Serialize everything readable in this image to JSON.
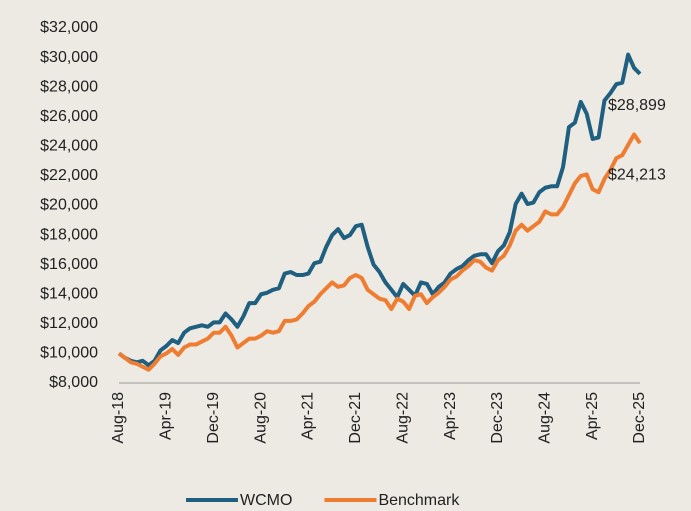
{
  "chart_data": {
    "type": "line",
    "categories": [
      "Aug-18",
      null,
      null,
      null,
      null,
      null,
      null,
      null,
      "Apr-19",
      null,
      null,
      null,
      null,
      null,
      null,
      null,
      "Dec-19",
      null,
      null,
      null,
      null,
      null,
      null,
      null,
      "Aug-20",
      null,
      null,
      null,
      null,
      null,
      null,
      null,
      "Apr-21",
      null,
      null,
      null,
      null,
      null,
      null,
      null,
      "Dec-21",
      null,
      null,
      null,
      null,
      null,
      null,
      null,
      "Aug-22",
      null,
      null,
      null,
      null,
      null,
      null,
      null,
      "Apr-23",
      null,
      null,
      null,
      null,
      null,
      null,
      null,
      "Dec-23",
      null,
      null,
      null,
      null,
      null,
      null,
      null,
      "Aug-24",
      null,
      null,
      null,
      null,
      null,
      null,
      null,
      "Apr-25",
      null,
      null,
      null,
      null,
      null,
      null,
      null,
      "Dec-25"
    ],
    "series": [
      {
        "name": "WCMO",
        "color": "#1f5f80",
        "values": [
          10000,
          9700,
          9500,
          9400,
          9500,
          9200,
          9500,
          10200,
          10500,
          10900,
          10700,
          11400,
          11700,
          11800,
          11900,
          11800,
          12100,
          12100,
          12700,
          12300,
          11800,
          12500,
          13400,
          13400,
          14000,
          14100,
          14300,
          14400,
          15400,
          15500,
          15300,
          15300,
          15400,
          16100,
          16200,
          17200,
          18000,
          18400,
          17800,
          18000,
          18600,
          18700,
          17200,
          16000,
          15500,
          14800,
          14300,
          13800,
          14700,
          14300,
          13900,
          14800,
          14700,
          14000,
          14500,
          14800,
          15400,
          15700,
          15900,
          16300,
          16600,
          16700,
          16700,
          16100,
          16900,
          17300,
          18200,
          20100,
          20800,
          20100,
          20200,
          20900,
          21200,
          21300,
          21300,
          22600,
          25300,
          25600,
          27000,
          26200,
          24500,
          24600,
          27100,
          27600,
          28200,
          28300,
          30200,
          29300,
          28899
        ],
        "value_labels": [
          null,
          null,
          null,
          null,
          null,
          null,
          null,
          null,
          null,
          null,
          null,
          null,
          null,
          null,
          null,
          null,
          null,
          null,
          null,
          null,
          null,
          null,
          null,
          null,
          null,
          null,
          null,
          null,
          null,
          null,
          null,
          null,
          null,
          null,
          null,
          null,
          null,
          null,
          null,
          null,
          null,
          null,
          null,
          null,
          null,
          null,
          null,
          null,
          null,
          null,
          null,
          null,
          null,
          null,
          null,
          null,
          null,
          null,
          null,
          null,
          null,
          null,
          null,
          null,
          null,
          null,
          null,
          null,
          null,
          null,
          null,
          null,
          null,
          null,
          null,
          null,
          null,
          null,
          null,
          null,
          null,
          null,
          null,
          null,
          null,
          null,
          null,
          null,
          "$28,899"
        ]
      },
      {
        "name": "Benchmark",
        "color": "#ee7d31",
        "values": [
          10000,
          9700,
          9400,
          9300,
          9100,
          8900,
          9300,
          9800,
          10000,
          10300,
          9900,
          10400,
          10600,
          10600,
          10800,
          11000,
          11400,
          11400,
          11800,
          11200,
          10400,
          10700,
          11000,
          11000,
          11200,
          11500,
          11400,
          11500,
          12200,
          12200,
          12300,
          12700,
          13200,
          13500,
          14000,
          14400,
          14800,
          14500,
          14600,
          15100,
          15300,
          15100,
          14300,
          14000,
          13700,
          13600,
          13000,
          13700,
          13500,
          13000,
          13900,
          14000,
          13400,
          13800,
          14100,
          14500,
          15000,
          15200,
          15600,
          15900,
          16300,
          16200,
          15800,
          15600,
          16300,
          16600,
          17300,
          18300,
          18700,
          18300,
          18600,
          18900,
          19600,
          19400,
          19400,
          19900,
          20700,
          21500,
          22000,
          22100,
          21100,
          20900,
          21800,
          22400,
          23200,
          23400,
          24100,
          24800,
          24213
        ],
        "value_labels": [
          null,
          null,
          null,
          null,
          null,
          null,
          null,
          null,
          null,
          null,
          null,
          null,
          null,
          null,
          null,
          null,
          null,
          null,
          null,
          null,
          null,
          null,
          null,
          null,
          null,
          null,
          null,
          null,
          null,
          null,
          null,
          null,
          null,
          null,
          null,
          null,
          null,
          null,
          null,
          null,
          null,
          null,
          null,
          null,
          null,
          null,
          null,
          null,
          null,
          null,
          null,
          null,
          null,
          null,
          null,
          null,
          null,
          null,
          null,
          null,
          null,
          null,
          null,
          null,
          null,
          null,
          null,
          null,
          null,
          null,
          null,
          null,
          null,
          null,
          null,
          null,
          null,
          null,
          null,
          null,
          null,
          null,
          null,
          null,
          null,
          null,
          null,
          null,
          "$24,213"
        ]
      }
    ],
    "ylim": [
      8000,
      32000
    ],
    "yticks": [
      {
        "value": 8000,
        "label": "$8,000"
      },
      {
        "value": 10000,
        "label": "$10,000"
      },
      {
        "value": 12000,
        "label": "$12,000"
      },
      {
        "value": 14000,
        "label": "$14,000"
      },
      {
        "value": 16000,
        "label": "$16,000"
      },
      {
        "value": 18000,
        "label": "$18,000"
      },
      {
        "value": 20000,
        "label": "$20,000"
      },
      {
        "value": 22000,
        "label": "$22,000"
      },
      {
        "value": 24000,
        "label": "$24,000"
      },
      {
        "value": 26000,
        "label": "$26,000"
      },
      {
        "value": 28000,
        "label": "$28,000"
      },
      {
        "value": 30000,
        "label": "$30,000"
      },
      {
        "value": 32000,
        "label": "$32,000"
      }
    ],
    "grid": false,
    "legend": "bottom"
  }
}
